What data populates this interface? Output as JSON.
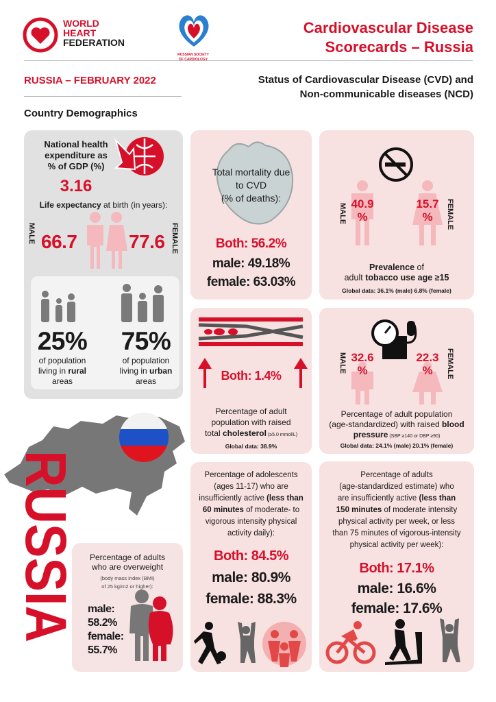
{
  "header": {
    "org": [
      "WORLD",
      "HEART",
      "FEDERATION"
    ],
    "society": [
      "RUSSIAN SOCIETY",
      "OF CARDIOLOGY"
    ],
    "title": [
      "Cardiovascular Disease",
      "Scorecards – Russia"
    ]
  },
  "subheader": {
    "country_date": "RUSSIA –  FEBRUARY 2022",
    "status": [
      "Status of Cardiovascular Disease (CVD) and",
      "Non-communicable diseases (NCD)"
    ]
  },
  "demographics": {
    "heading": "Country Demographics",
    "expenditure": {
      "label": [
        "National health",
        "expenditure as",
        "% of GDP (%)"
      ],
      "value": "3.16"
    },
    "life_expectancy": {
      "label": [
        "Life expectancy",
        " at birth (in years):"
      ],
      "male_label": "MALE",
      "male": "66.7",
      "female": "77.6",
      "female_label": "FEMALE"
    },
    "rural": {
      "value": "25%",
      "text": [
        "of population",
        [
          "living in ",
          "rural"
        ],
        "areas"
      ]
    },
    "urban": {
      "value": "75%",
      "text": [
        "of population",
        [
          "living in ",
          "urban"
        ],
        "areas"
      ]
    }
  },
  "cvd_mortality": {
    "label": [
      "Total mortality due",
      "to CVD",
      "(% of deaths):"
    ],
    "both": "Both: 56.2%",
    "male": "male: 49.18%",
    "female": "female: 63.03%"
  },
  "tobacco": {
    "male_label": "MALE",
    "male": [
      "40.9",
      "%"
    ],
    "female": [
      "15.7",
      "%"
    ],
    "female_label": "FEMALE",
    "label": [
      [
        "Prevalence",
        " of"
      ],
      [
        "adult ",
        "tobacco use age ≥15"
      ]
    ],
    "global": "Global data: 36.1% (male) 6.8% (female)"
  },
  "cholesterol": {
    "both": "Both: 1.4%",
    "label": [
      "Percentage of adult",
      "population with raised",
      [
        "total ",
        "cholesterol",
        " (≥5.0 mmol/L)"
      ]
    ],
    "global": "Global data: 38.9%"
  },
  "blood_pressure": {
    "male_label": "MALE",
    "male": [
      "32.6",
      "%"
    ],
    "female": [
      "22.3",
      "%"
    ],
    "female_label": "FEMALE",
    "label": [
      "Percentage of adult population",
      [
        "(age-standardized) with raised ",
        "blood"
      ],
      [
        "pressure",
        " (SBP ≥140 or DBP ≥90)"
      ]
    ],
    "global": "Global data: 24.1% (male) 20.1% (female)"
  },
  "adolescent_activity": {
    "label": [
      "Percentage of adolescents",
      "(ages 11-17) who are",
      [
        "insufficiently active ",
        "(less than"
      ],
      [
        "60 minutes",
        " of moderate- to"
      ],
      "vigorous intensity physical",
      "activity daily):"
    ],
    "both": "Both: 84.5%",
    "male": "male: 80.9%",
    "female": "female: 88.3%"
  },
  "adult_activity": {
    "label": [
      "Percentage of adults",
      "(age-standardized estimate) who",
      [
        "are insufficiently active ",
        "(less than"
      ],
      [
        "150 minutes",
        " of moderate intensity"
      ],
      "physical activity per week, or less",
      "than 75 minutes of vigorous-intensity",
      "physical activity per week):"
    ],
    "both": "Both: 17.1%",
    "male": "male: 16.6%",
    "female": "female: 17.6%"
  },
  "overweight": {
    "label": [
      "Percentage of adults",
      "who are overweight"
    ],
    "note": [
      "(body mass index (BMI)",
      "of 25 kg/m2 or higher):"
    ],
    "male_label": "male:",
    "male": "58.2%",
    "female_label": "female:",
    "female": "55.7%"
  },
  "country_name": "RUSSIA"
}
